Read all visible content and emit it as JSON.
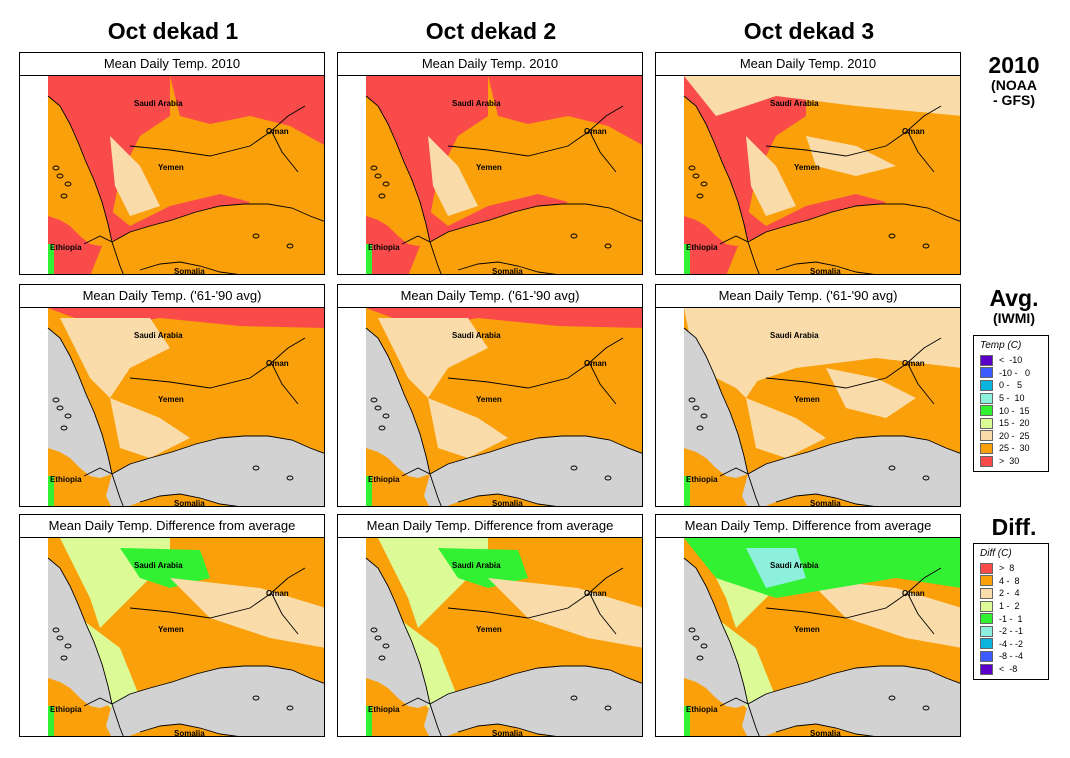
{
  "columns": [
    "Oct dekad 1",
    "Oct dekad 2",
    "Oct dekad 3"
  ],
  "row_labels": [
    {
      "big": "2010",
      "small": [
        "(NOAA",
        "- GFS)"
      ]
    },
    {
      "big": "Avg.",
      "small": [
        "(IWMI)"
      ]
    },
    {
      "big": "Diff.",
      "small": []
    }
  ],
  "panel_titles": [
    [
      "Mean Daily Temp. 2010",
      "Mean Daily Temp. 2010",
      "Mean Daily Temp. 2010"
    ],
    [
      "Mean Daily Temp. ('61-'90 avg)",
      "Mean Daily Temp. ('61-'90 avg)",
      "Mean Daily Temp. ('61-'90 avg)"
    ],
    [
      "Mean Daily Temp. Difference from average",
      "Mean Daily Temp. Difference from average",
      "Mean Daily Temp. Difference from average"
    ]
  ],
  "map_labels": {
    "saudi": "Saudi Arabia",
    "oman": "Oman",
    "yemen": "Yemen",
    "ethiopia": "Ethiopia",
    "somalia": "Somalia"
  },
  "colors": {
    "hot": "#fa4b4b",
    "warm": "#faa00a",
    "mild": "#fadcaa",
    "cool": "#dcfa96",
    "green": "#32f032",
    "cyan": "#8cf0dc",
    "blue": "#0ab4dc",
    "sea": "#d2d2d2"
  },
  "temp_legend": {
    "title": "Temp (C)",
    "items": [
      {
        "label": "<  -10",
        "color": "#5a00c8"
      },
      {
        "label": "-10 -   0",
        "color": "#3c5aff"
      },
      {
        "label": "0 -   5",
        "color": "#0ab4dc"
      },
      {
        "label": "5 -  10",
        "color": "#8cf0dc"
      },
      {
        "label": "10 -  15",
        "color": "#32f032"
      },
      {
        "label": "15 -  20",
        "color": "#dcfa96"
      },
      {
        "label": "20 -  25",
        "color": "#fadcaa"
      },
      {
        "label": "25 -  30",
        "color": "#faa00a"
      },
      {
        "label": ">  30",
        "color": "#fa4b4b"
      }
    ]
  },
  "diff_legend": {
    "title": "Diff (C)",
    "items": [
      {
        "label": ">  8",
        "color": "#fa4b4b"
      },
      {
        "label": "4 -  8",
        "color": "#faa00a"
      },
      {
        "label": "2 -  4",
        "color": "#fadcaa"
      },
      {
        "label": "1 -  2",
        "color": "#dcfa96"
      },
      {
        "label": "-1 -  1",
        "color": "#32f032"
      },
      {
        "label": "-2 - -1",
        "color": "#8cf0dc"
      },
      {
        "label": "-4 - -2",
        "color": "#0ab4dc"
      },
      {
        "label": "-8 - -4",
        "color": "#3c5aff"
      },
      {
        "label": "<  -8",
        "color": "#5a00c8"
      }
    ]
  }
}
